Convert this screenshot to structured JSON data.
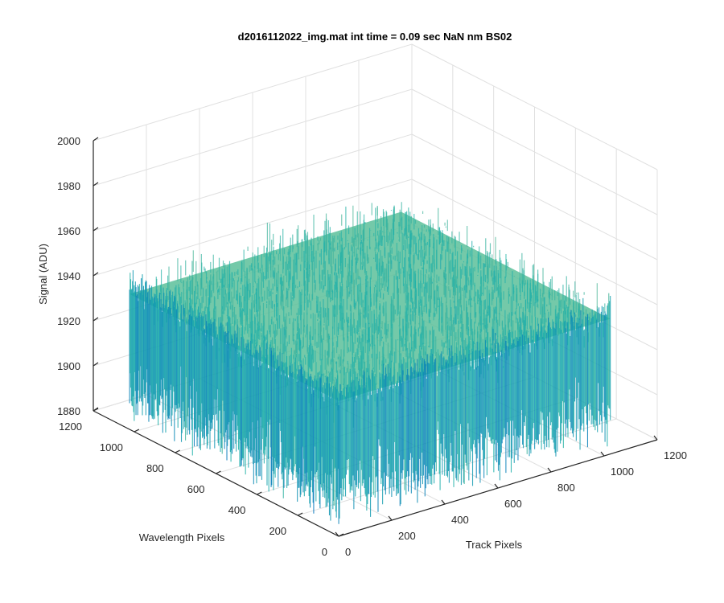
{
  "chart_data": {
    "type": "surface",
    "title": "d2016112022_img.mat int time = 0.09 sec  NaN nm BS02",
    "xlabel": "Track Pixels",
    "ylabel": "Wavelength Pixels",
    "zlabel": "Signal (ADU)",
    "xlim": [
      0,
      1200
    ],
    "ylim": [
      0,
      1200
    ],
    "zlim": [
      1880,
      2000
    ],
    "xticks": [
      "0",
      "200",
      "400",
      "600",
      "800",
      "1000",
      "1200"
    ],
    "yticks": [
      "0",
      "200",
      "400",
      "600",
      "800",
      "1000",
      "1200"
    ],
    "zticks": [
      "1880",
      "1900",
      "1920",
      "1940",
      "1960",
      "1980",
      "2000"
    ],
    "grid": true,
    "surface": {
      "x_range": [
        1,
        1024
      ],
      "y_range": [
        1,
        1024
      ],
      "z_mean": 1940,
      "z_min": 1882,
      "z_max": 1985
    },
    "colors": {
      "low": "#0072bd",
      "mid": "#20b2aa",
      "high": "#e5c25a",
      "axis": "#262626",
      "grid": "#e0e0e0"
    }
  }
}
